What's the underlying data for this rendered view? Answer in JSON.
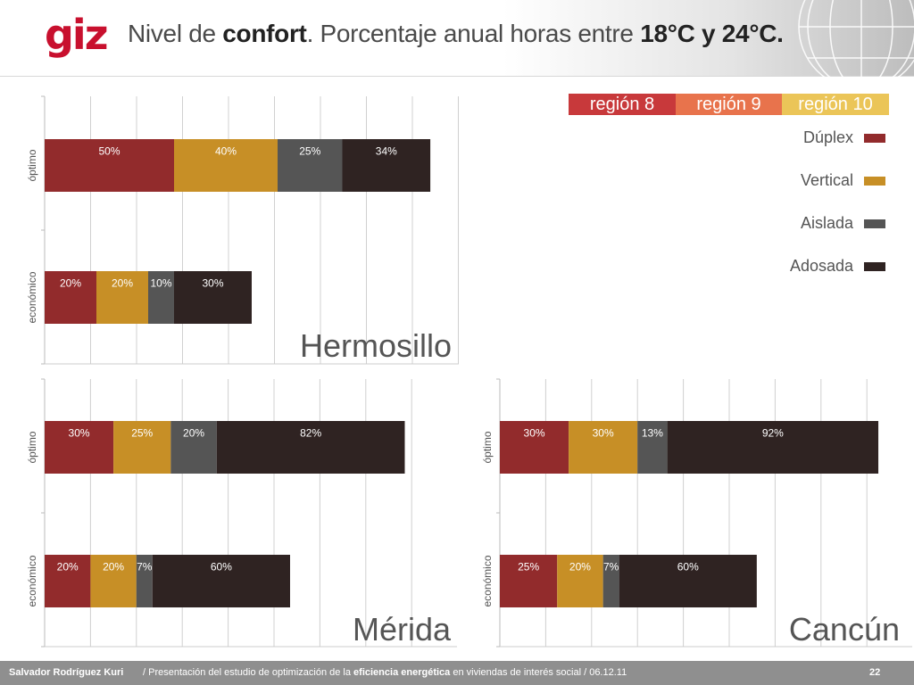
{
  "header": {
    "logo_text": "giz",
    "title_plain1": "Nivel de ",
    "title_bold1": "confort",
    "title_plain2": ". Porcentaje anual horas entre ",
    "title_bold2": "18°C y 24°C."
  },
  "legend": {
    "regions": [
      {
        "label": "región 8",
        "color": "#c8393b"
      },
      {
        "label": "región 9",
        "color": "#e8734c"
      },
      {
        "label": "región 10",
        "color": "#ebc558"
      }
    ],
    "series": [
      {
        "label": "Dúplex",
        "color": "#922b2c"
      },
      {
        "label": "Vertical",
        "color": "#c78f26"
      },
      {
        "label": "Aislada",
        "color": "#555555"
      },
      {
        "label": "Adosada",
        "color": "#2f2322"
      }
    ]
  },
  "chart_data": [
    {
      "type": "bar",
      "orientation": "horizontal",
      "stacked": true,
      "title": "Hermosillo",
      "categories": [
        "óptimo",
        "económico"
      ],
      "series": [
        {
          "name": "Dúplex",
          "values": [
            50,
            20
          ],
          "labels": [
            "50%",
            "20%"
          ]
        },
        {
          "name": "Vertical",
          "values": [
            40,
            20
          ],
          "labels": [
            "40%",
            "20%"
          ]
        },
        {
          "name": "Aislada",
          "values": [
            25,
            10
          ],
          "labels": [
            "25%",
            "10%"
          ]
        },
        {
          "name": "Adosada",
          "values": [
            34,
            30
          ],
          "labels": [
            "34%",
            "30%"
          ]
        }
      ],
      "xlim": [
        0,
        160
      ],
      "grid": true
    },
    {
      "type": "bar",
      "orientation": "horizontal",
      "stacked": true,
      "title": "Mérida",
      "categories": [
        "óptimo",
        "económico"
      ],
      "series": [
        {
          "name": "Dúplex",
          "values": [
            30,
            20
          ],
          "labels": [
            "30%",
            "20%"
          ]
        },
        {
          "name": "Vertical",
          "values": [
            25,
            20
          ],
          "labels": [
            "25%",
            "20%"
          ]
        },
        {
          "name": "Aislada",
          "values": [
            20,
            7
          ],
          "labels": [
            "20%",
            "7%"
          ]
        },
        {
          "name": "Adosada",
          "values": [
            82,
            60
          ],
          "labels": [
            "82%",
            "60%"
          ]
        }
      ],
      "xlim": [
        0,
        180
      ],
      "grid": true
    },
    {
      "type": "bar",
      "orientation": "horizontal",
      "stacked": true,
      "title": "Cancún",
      "categories": [
        "óptimo",
        "económico"
      ],
      "series": [
        {
          "name": "Dúplex",
          "values": [
            30,
            25
          ],
          "labels": [
            "30%",
            "25%"
          ]
        },
        {
          "name": "Vertical",
          "values": [
            30,
            20
          ],
          "labels": [
            "30%",
            "20%"
          ]
        },
        {
          "name": "Aislada",
          "values": [
            13,
            7
          ],
          "labels": [
            "13%",
            "7%"
          ]
        },
        {
          "name": "Adosada",
          "values": [
            92,
            60
          ],
          "labels": [
            "92%",
            "60%"
          ]
        }
      ],
      "xlim": [
        0,
        180
      ],
      "grid": true
    }
  ],
  "footer": {
    "author": "Salvador Rodríguez Kuri",
    "text_prefix": "/ Presentación del estudio de optimización de la ",
    "text_bold": "eficiencia energética",
    "text_suffix": " en viviendas de interés social  /  06.12.11",
    "page_number": "22"
  }
}
